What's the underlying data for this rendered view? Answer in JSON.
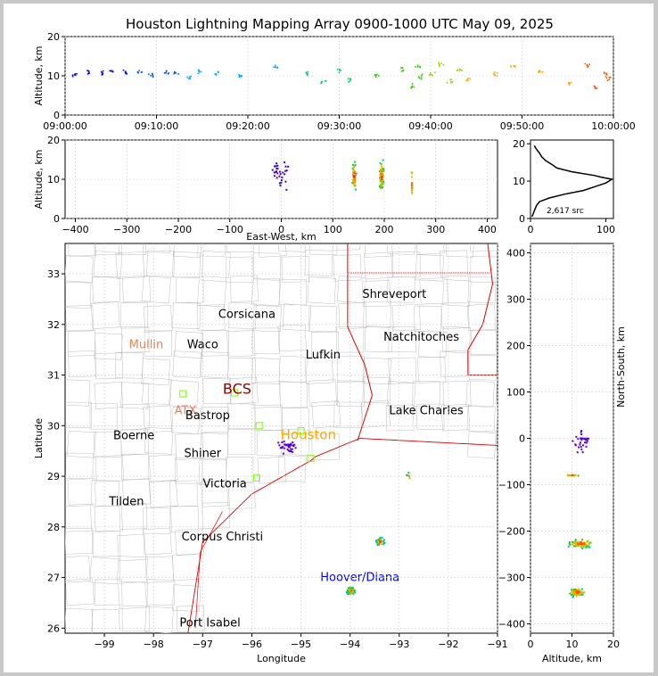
{
  "title": "Houston Lightning Mapping Array 0900-1000 UTC May 09, 2025",
  "colors": {
    "grid": "#cfcfcf",
    "county": "#bdbdbd",
    "state": "#e00000",
    "coast": "#e00000"
  },
  "chart_data": [
    {
      "id": "alt_time",
      "type": "scatter",
      "xlabel": "",
      "ylabel": "Altitude, km",
      "xlim": [
        "09:00:00",
        "10:00:00"
      ],
      "ylim": [
        0,
        20
      ],
      "xticks": [
        "09:00:00",
        "09:10:00",
        "09:20:00",
        "09:30:00",
        "09:40:00",
        "09:50:00",
        "10:00:00"
      ],
      "yticks": [
        0,
        10,
        20
      ],
      "grid": true,
      "points_t_min": [
        1,
        2.5,
        4,
        5,
        6.5,
        8,
        9.5,
        11,
        12,
        13.5,
        14.5,
        16.5,
        19,
        23,
        26.5,
        28,
        30,
        31,
        34,
        37,
        38,
        38.5,
        39,
        40,
        41,
        42,
        43,
        44,
        47,
        49,
        52,
        55,
        57,
        58,
        59,
        59.5
      ],
      "points_alt_km": [
        10.5,
        11.2,
        10.8,
        11.5,
        10.9,
        11.3,
        10.4,
        11.0,
        10.7,
        9.9,
        11.4,
        10.6,
        10.2,
        12.3,
        10.8,
        8.5,
        11.6,
        9.2,
        10.3,
        11.9,
        7.5,
        12.5,
        9.8,
        10.6,
        13.1,
        8.7,
        11.5,
        9.4,
        10.8,
        12.6,
        11.2,
        8.3,
        12.8,
        7.2,
        10.5,
        9.5
      ]
    },
    {
      "id": "alt_ew",
      "type": "scatter",
      "xlabel": "East-West, km",
      "ylabel": "Altitude, km",
      "xlim": [
        -420,
        420
      ],
      "ylim": [
        0,
        20
      ],
      "xticks": [
        -400,
        -300,
        -200,
        -100,
        0,
        100,
        200,
        300,
        400
      ],
      "yticks": [
        0,
        10,
        20
      ],
      "grid": true,
      "clusters": [
        {
          "x_km": 140,
          "alt_km": 11,
          "count": 45
        },
        {
          "x_km": 193,
          "alt_km": 11,
          "count": 85
        },
        {
          "x_km": 252,
          "alt_km": 9,
          "count": 15
        },
        {
          "x_km": -5,
          "alt_km": 12,
          "count": 30
        }
      ]
    },
    {
      "id": "alt_hist",
      "type": "line",
      "xlim": [
        0,
        110
      ],
      "ylim": [
        0,
        21
      ],
      "xticks": [
        0,
        100
      ],
      "yticks": [
        0,
        10,
        20
      ],
      "annotation": "2,617 src",
      "profile_alt_km": [
        0.5,
        2,
        3.5,
        4.5,
        5.5,
        6.5,
        7.5,
        8.5,
        9.5,
        10.5,
        11,
        11.5,
        12.5,
        13.5,
        14.5,
        15.5,
        16.5,
        17.5,
        18.5,
        19.5
      ],
      "profile_count": [
        2,
        5,
        8,
        12,
        25,
        45,
        70,
        85,
        100,
        108,
        95,
        85,
        55,
        35,
        28,
        20,
        15,
        12,
        8,
        5
      ]
    },
    {
      "id": "plan_view",
      "type": "scatter",
      "xlabel": "Longitude",
      "ylabel": "Latitude",
      "xlim": [
        -99.8,
        -91
      ],
      "ylim": [
        25.9,
        33.6
      ],
      "xticks": [
        -99,
        -98,
        -97,
        -96,
        -95,
        -94,
        -93,
        -92,
        -91
      ],
      "yticks": [
        26,
        27,
        28,
        29,
        30,
        31,
        32,
        33
      ],
      "grid": true,
      "clusters": [
        {
          "lon": -94.0,
          "lat": 26.75,
          "count": 80
        },
        {
          "lon": -93.4,
          "lat": 27.72,
          "count": 30
        },
        {
          "lon": -92.8,
          "lat": 29.02,
          "count": 6
        },
        {
          "lon": -95.3,
          "lat": 29.6,
          "count": 40
        }
      ],
      "stations": [
        {
          "lon": -97.4,
          "lat": 30.63
        },
        {
          "lon": -96.35,
          "lat": 30.65
        },
        {
          "lon": -95.85,
          "lat": 30.0
        },
        {
          "lon": -95.0,
          "lat": 29.9
        },
        {
          "lon": -94.8,
          "lat": 29.35
        },
        {
          "lon": -95.9,
          "lat": 28.97
        }
      ],
      "labels": [
        {
          "text": "Shreveport",
          "lon": -93.1,
          "lat": 32.6,
          "color": "#000000",
          "size": 13
        },
        {
          "text": "Corsicana",
          "lon": -96.1,
          "lat": 32.2,
          "color": "#000000",
          "size": 13
        },
        {
          "text": "Natchitoches",
          "lon": -92.55,
          "lat": 31.75,
          "color": "#000000",
          "size": 13
        },
        {
          "text": "Mullin",
          "lon": -98.15,
          "lat": 31.6,
          "color": "#f08050",
          "size": 13
        },
        {
          "text": "Waco",
          "lon": -97.0,
          "lat": 31.6,
          "color": "#000000",
          "size": 13
        },
        {
          "text": "Lufkin",
          "lon": -94.55,
          "lat": 31.4,
          "color": "#000000",
          "size": 13
        },
        {
          "text": "BCS",
          "lon": -96.3,
          "lat": 30.7,
          "color": "#8b0000",
          "size": 16
        },
        {
          "text": "ATX",
          "lon": -97.35,
          "lat": 30.3,
          "color": "#f08050",
          "size": 13
        },
        {
          "text": "Bastrop",
          "lon": -96.9,
          "lat": 30.2,
          "color": "#000000",
          "size": 13
        },
        {
          "text": "Lake Charles",
          "lon": -92.45,
          "lat": 30.3,
          "color": "#000000",
          "size": 13
        },
        {
          "text": "Boerne",
          "lon": -98.4,
          "lat": 29.8,
          "color": "#000000",
          "size": 13
        },
        {
          "text": "Houston",
          "lon": -94.85,
          "lat": 29.8,
          "color": "#ffa500",
          "size": 15
        },
        {
          "text": "Shiner",
          "lon": -97.0,
          "lat": 29.45,
          "color": "#000000",
          "size": 13
        },
        {
          "text": "Victoria",
          "lon": -96.55,
          "lat": 28.85,
          "color": "#000000",
          "size": 13
        },
        {
          "text": "Tilden",
          "lon": -98.55,
          "lat": 28.5,
          "color": "#000000",
          "size": 13
        },
        {
          "text": "Corpus Christi",
          "lon": -96.6,
          "lat": 27.8,
          "color": "#000000",
          "size": 13
        },
        {
          "text": "Hoover/Diana",
          "lon": -93.8,
          "lat": 27.0,
          "color": "#0000ff",
          "size": 13
        },
        {
          "text": "Port Isabel",
          "lon": -96.85,
          "lat": 26.1,
          "color": "#000000",
          "size": 13
        }
      ]
    },
    {
      "id": "ns_alt",
      "type": "scatter",
      "xlabel": "Altitude, km",
      "ylabel": "North-South, km",
      "xlim": [
        0,
        20
      ],
      "ylim": [
        -420,
        420
      ],
      "xticks": [
        0,
        10,
        20
      ],
      "yticks": [
        -400,
        -300,
        -200,
        -100,
        0,
        100,
        200,
        300,
        400
      ],
      "grid": true,
      "clusters": [
        {
          "alt_km": 11,
          "y_km": -330,
          "count": 70
        },
        {
          "alt_km": 12,
          "y_km": -225,
          "count": 70
        },
        {
          "alt_km": 10,
          "y_km": -78,
          "count": 15
        },
        {
          "alt_km": 12,
          "y_km": -10,
          "count": 30
        }
      ]
    }
  ]
}
